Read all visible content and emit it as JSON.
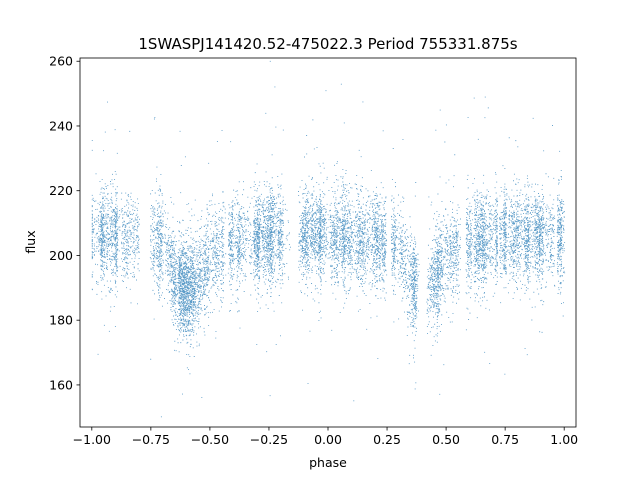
{
  "chart_data": {
    "type": "scatter",
    "title": "1SWASPJ141420.52-475022.3 Period 755331.875s",
    "xlabel": "phase",
    "ylabel": "flux",
    "xlim": [
      -1.05,
      1.05
    ],
    "ylim": [
      147,
      261
    ],
    "xticks": [
      -1.0,
      -0.75,
      -0.5,
      -0.25,
      0.0,
      0.25,
      0.5,
      0.75,
      1.0
    ],
    "xtick_labels": [
      "−1.00",
      "−0.75",
      "−0.50",
      "−0.25",
      "0.00",
      "0.25",
      "0.50",
      "0.75",
      "1.00"
    ],
    "yticks": [
      160,
      180,
      200,
      220,
      240,
      260
    ],
    "ytick_labels": [
      "160",
      "180",
      "200",
      "220",
      "240",
      "260"
    ],
    "grid": false,
    "point_color": "#1f77b4",
    "x_range_of_points": [
      -1.0,
      1.0
    ],
    "approx_point_count": 12000,
    "baseline_flux": 205,
    "typical_scatter": 7,
    "eclipse_profile": [
      {
        "phase": -1.0,
        "flux": 206
      },
      {
        "phase": -0.9,
        "flux": 206
      },
      {
        "phase": -0.8,
        "flux": 205
      },
      {
        "phase": -0.7,
        "flux": 203
      },
      {
        "phase": -0.65,
        "flux": 192
      },
      {
        "phase": -0.6,
        "flux": 189
      },
      {
        "phase": -0.55,
        "flux": 192
      },
      {
        "phase": -0.5,
        "flux": 200
      },
      {
        "phase": -0.4,
        "flux": 204
      },
      {
        "phase": -0.25,
        "flux": 206
      },
      {
        "phase": 0.0,
        "flux": 206
      },
      {
        "phase": 0.2,
        "flux": 205
      },
      {
        "phase": 0.3,
        "flux": 203
      },
      {
        "phase": 0.35,
        "flux": 192
      },
      {
        "phase": 0.4,
        "flux": 189
      },
      {
        "phase": 0.45,
        "flux": 192
      },
      {
        "phase": 0.5,
        "flux": 200
      },
      {
        "phase": 0.6,
        "flux": 204
      },
      {
        "phase": 0.75,
        "flux": 206
      },
      {
        "phase": 1.0,
        "flux": 206
      }
    ]
  }
}
